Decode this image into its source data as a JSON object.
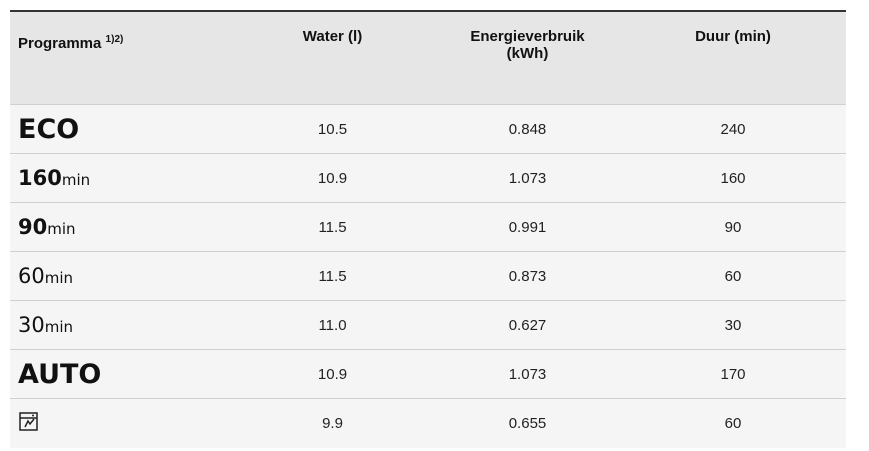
{
  "table": {
    "header": [
      {
        "text": "Programma",
        "sup": "1)2)"
      },
      {
        "text": "Water (l)"
      },
      {
        "text": "Energieverbruik (kWh)"
      },
      {
        "text": "Duur (min)"
      }
    ],
    "rows": [
      {
        "program": {
          "label": "ECO",
          "style": "big"
        },
        "cells": [
          "10.5",
          "0.848",
          "240"
        ]
      },
      {
        "program": {
          "label": "160",
          "unit": "min",
          "style": "bold"
        },
        "cells": [
          "10.9",
          "1.073",
          "160"
        ]
      },
      {
        "program": {
          "label": "90",
          "unit": "min",
          "style": "bold"
        },
        "cells": [
          "11.5",
          "0.991",
          "90"
        ]
      },
      {
        "program": {
          "label": "60",
          "unit": "min",
          "style": "light"
        },
        "cells": [
          "11.5",
          "0.873",
          "60"
        ]
      },
      {
        "program": {
          "label": "30",
          "unit": "min",
          "style": "light"
        },
        "cells": [
          "11.0",
          "0.627",
          "30"
        ]
      },
      {
        "program": {
          "label": "AUTO",
          "style": "big"
        },
        "cells": [
          "10.9",
          "1.073",
          "170"
        ]
      },
      {
        "icon": "quick-wash",
        "cells": [
          "9.9",
          "0.655",
          "60"
        ]
      }
    ]
  }
}
